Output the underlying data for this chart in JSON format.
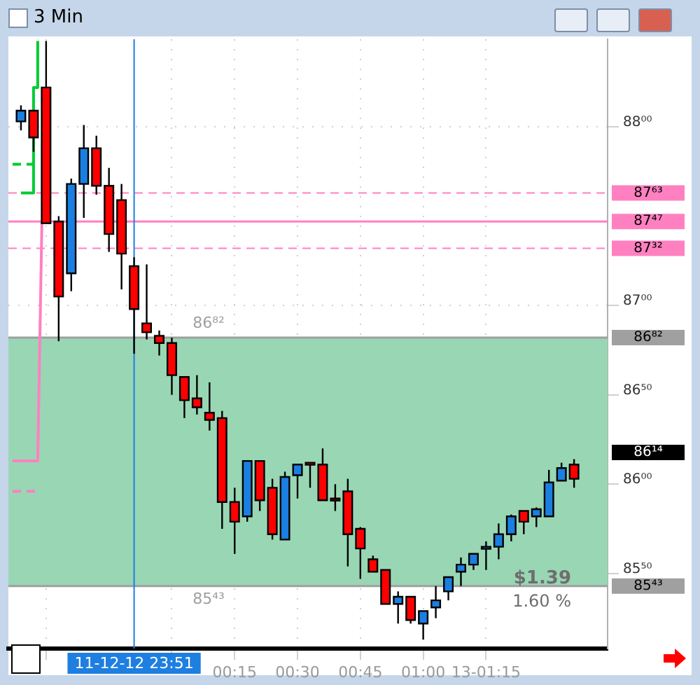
{
  "chart_data": {
    "type": "candlestick",
    "title": "3 Min",
    "x": [
      "--12-12T23:24",
      "--12-12T23:27",
      "--12-12T23:30",
      "--12-12T23:33",
      "--12-12T23:36",
      "--12-12T23:39",
      "--12-12T23:42",
      "--12-12T23:45",
      "--12-12T23:48",
      "--12-12T23:51",
      "--12-12T23:54",
      "--12-12T23:57",
      "--12-13T00:00",
      "--12-13T00:03",
      "--12-13T00:06",
      "--12-13T00:09",
      "--12-13T00:12",
      "--12-13T00:15",
      "--12-13T00:18",
      "--12-13T00:21",
      "--12-13T00:24",
      "--12-13T00:27",
      "--12-13T00:30",
      "--12-13T00:33",
      "--12-13T00:36",
      "--12-13T00:39",
      "--12-13T00:42",
      "--12-13T00:45",
      "--12-13T00:48",
      "--12-13T00:51",
      "--12-13T00:54",
      "--12-13T00:57",
      "--12-13T01:00",
      "--12-13T01:03",
      "--12-13T01:06",
      "--12-13T01:09",
      "--12-13T01:12",
      "--12-13T01:15",
      "--12-13T01:18",
      "--12-13T01:21",
      "--12-13T01:24",
      "--12-13T01:27",
      "--12-13T01:30",
      "--12-13T01:33",
      "--12-13T01:36"
    ],
    "ohlc": [
      [
        88.03,
        88.12,
        87.98,
        88.09
      ],
      [
        88.09,
        88.09,
        87.86,
        87.94
      ],
      [
        88.22,
        88.48,
        87.46,
        87.46
      ],
      [
        87.47,
        87.5,
        86.8,
        87.05
      ],
      [
        87.18,
        87.71,
        87.08,
        87.68
      ],
      [
        87.68,
        88.01,
        87.49,
        87.88
      ],
      [
        87.88,
        87.95,
        87.62,
        87.67
      ],
      [
        87.67,
        87.77,
        87.3,
        87.4
      ],
      [
        87.59,
        87.68,
        87.09,
        87.29
      ],
      [
        87.22,
        87.27,
        86.73,
        86.98
      ],
      [
        86.9,
        87.23,
        86.81,
        86.85
      ],
      [
        86.83,
        86.86,
        86.72,
        86.79
      ],
      [
        86.79,
        86.82,
        86.5,
        86.61
      ],
      [
        86.6,
        86.6,
        86.37,
        86.47
      ],
      [
        86.48,
        86.61,
        86.39,
        86.43
      ],
      [
        86.4,
        86.57,
        86.3,
        86.36
      ],
      [
        86.37,
        86.41,
        85.75,
        85.9
      ],
      [
        85.9,
        85.98,
        85.61,
        85.79
      ],
      [
        85.82,
        86.13,
        85.79,
        86.13
      ],
      [
        86.13,
        86.13,
        85.85,
        85.91
      ],
      [
        85.98,
        86.03,
        85.69,
        85.72
      ],
      [
        85.69,
        86.07,
        85.69,
        86.04
      ],
      [
        86.05,
        86.11,
        85.92,
        86.11
      ],
      [
        86.12,
        86.12,
        85.98,
        86.11
      ],
      [
        86.11,
        86.2,
        85.91,
        85.91
      ],
      [
        85.92,
        86.0,
        85.85,
        85.91
      ],
      [
        85.96,
        86.03,
        85.54,
        85.72
      ],
      [
        85.75,
        85.76,
        85.47,
        85.64
      ],
      [
        85.58,
        85.6,
        85.51,
        85.51
      ],
      [
        85.52,
        85.52,
        85.33,
        85.33
      ],
      [
        85.33,
        85.4,
        85.22,
        85.37
      ],
      [
        85.37,
        85.37,
        85.22,
        85.24
      ],
      [
        85.22,
        85.29,
        85.13,
        85.29
      ],
      [
        85.31,
        85.43,
        85.25,
        85.35
      ],
      [
        85.4,
        85.48,
        85.35,
        85.48
      ],
      [
        85.51,
        85.59,
        85.43,
        85.55
      ],
      [
        85.55,
        85.61,
        85.52,
        85.61
      ],
      [
        85.64,
        85.68,
        85.52,
        85.65
      ],
      [
        85.65,
        85.78,
        85.58,
        85.72
      ],
      [
        85.72,
        85.83,
        85.68,
        85.82
      ],
      [
        85.85,
        85.85,
        85.72,
        85.79
      ],
      [
        85.82,
        85.87,
        85.76,
        85.86
      ],
      [
        85.82,
        86.08,
        85.82,
        86.01
      ],
      [
        86.02,
        86.12,
        86.02,
        86.09
      ],
      [
        86.11,
        86.14,
        85.98,
        86.03
      ]
    ],
    "colors": [
      "#1a7fe0",
      "#ff0000",
      "#ff0000",
      "#ff0000",
      "#1a7fe0",
      "#1a7fe0",
      "#ff0000",
      "#ff0000",
      "#ff0000",
      "#ff0000",
      "#ff0000",
      "#ff0000",
      "#ff0000",
      "#ff0000",
      "#ff0000",
      "#ff0000",
      "#ff0000",
      "#ff0000",
      "#1a7fe0",
      "#ff0000",
      "#ff0000",
      "#1a7fe0",
      "#1a7fe0",
      "#ff0000",
      "#ff0000",
      "#ff0000",
      "#ff0000",
      "#ff0000",
      "#ff0000",
      "#ff0000",
      "#1a7fe0",
      "#ff0000",
      "#1a7fe0",
      "#1a7fe0",
      "#1a7fe0",
      "#1a7fe0",
      "#1a7fe0",
      "#1a7fe0",
      "#1a7fe0",
      "#1a7fe0",
      "#ff0000",
      "#1a7fe0",
      "#1a7fe0",
      "#1a7fe0",
      "#ff0000"
    ],
    "series": [
      {
        "type": "line",
        "color": "#00cc33",
        "line_style": "solid",
        "x": [
          "--12-12T23:24",
          "--12-12T23:27",
          "--12-12T23:27",
          "--12-12T23:28",
          "--12-12T23:28"
        ],
        "values": [
          87.63,
          87.63,
          88.22,
          88.22,
          88.48
        ]
      },
      {
        "type": "line",
        "color": "#00cc33",
        "line_style": "dashed",
        "x": [
          "--12-12T23:22",
          "--12-12T23:27"
        ],
        "values": [
          87.79,
          87.79
        ]
      },
      {
        "type": "line",
        "color": "#ff80c0",
        "line_style": "solid",
        "x": [
          "--12-12T23:22",
          "--12-12T23:28",
          "--12-12T23:29"
        ],
        "values": [
          86.13,
          86.13,
          87.47
        ]
      },
      {
        "type": "line",
        "color": "#ff80c0",
        "line_style": "dashed",
        "x": [
          "--12-12T23:22",
          "--12-12T23:28"
        ],
        "values": [
          85.96,
          85.96
        ]
      }
    ],
    "xlim": [
      "--12-12T23:21",
      "--12-13T01:44"
    ],
    "ylim": [
      85.08,
      88.49
    ],
    "xticks": [
      {
        "value": "--12-12T23:30",
        "label": null
      },
      {
        "value": "--12-13T00:00",
        "label": null
      },
      {
        "value": "--12-13T00:15",
        "label": "00:15"
      },
      {
        "value": "--12-13T00:30",
        "label": "00:30"
      },
      {
        "value": "--12-13T00:45",
        "label": "00:45"
      },
      {
        "value": "--12-13T01:00",
        "label": "01:00"
      },
      {
        "value": "--12-13T01:15",
        "label": "13-01:15"
      }
    ],
    "yticks": [
      {
        "value": 85.5,
        "label": "85⁵⁰"
      },
      {
        "value": 86,
        "label": "86⁰⁰"
      },
      {
        "value": 86.5,
        "label": "86⁵⁰"
      },
      {
        "value": 87,
        "label": "87⁰⁰"
      },
      {
        "value": 88,
        "label": "88⁰⁰"
      }
    ],
    "grid": true,
    "bands": [
      {
        "axis": "y",
        "from": 85.43,
        "to": 86.82,
        "color": "#99d6b4"
      }
    ],
    "ref_lines": [
      {
        "axis": "y",
        "value": 87.63,
        "label": "87⁶³",
        "color": "#ff80c0",
        "line_style": "dashed"
      },
      {
        "axis": "y",
        "value": 87.47,
        "label": "87⁴⁷",
        "color": "#ff80c0",
        "line_style": "solid"
      },
      {
        "axis": "y",
        "value": 87.32,
        "label": "87³²",
        "color": "#ff80c0",
        "line_style": "dashed"
      },
      {
        "axis": "y",
        "value": 86.82,
        "label": "86⁸²",
        "color": "#a0a0a0",
        "line_style": "solid"
      },
      {
        "axis": "y",
        "value": 85.43,
        "label": "85⁴³",
        "color": "#a0a0a0",
        "line_style": "solid"
      },
      {
        "axis": "x",
        "value": "--12-12T23:51",
        "label": "11-12-12 23:51",
        "color": "#1e7fe0",
        "line_style": "solid"
      }
    ],
    "annotations": [
      "$1.39",
      "1.60 %",
      "86¹⁴",
      "86⁸²",
      "85⁴³"
    ]
  }
}
